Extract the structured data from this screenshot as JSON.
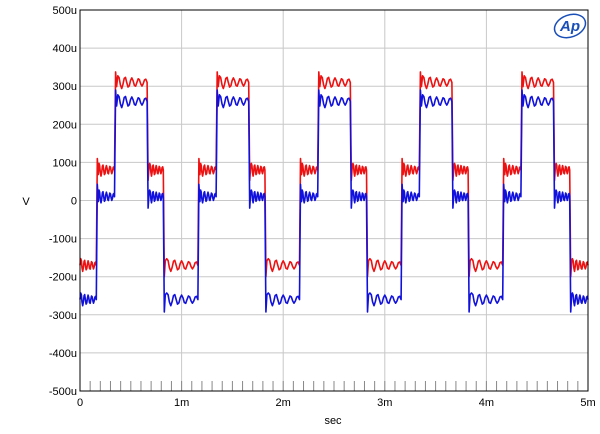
{
  "chart_data": {
    "type": "line",
    "title": "",
    "xlabel": "sec",
    "ylabel": "V",
    "xlim": [
      0,
      0.005
    ],
    "ylim": [
      -0.0005,
      0.0005
    ],
    "grid": true,
    "logo": "Ap",
    "x_ticks": [
      {
        "value": 0,
        "label": "0"
      },
      {
        "value": 0.001,
        "label": "1m"
      },
      {
        "value": 0.002,
        "label": "2m"
      },
      {
        "value": 0.003,
        "label": "3m"
      },
      {
        "value": 0.004,
        "label": "4m"
      },
      {
        "value": 0.005,
        "label": "5m"
      }
    ],
    "y_ticks": [
      {
        "value": 0.0005,
        "label": "500u"
      },
      {
        "value": 0.0004,
        "label": "400u"
      },
      {
        "value": 0.0003,
        "label": "300u"
      },
      {
        "value": 0.0002,
        "label": "200u"
      },
      {
        "value": 0.0001,
        "label": "100u"
      },
      {
        "value": 0,
        "label": "0"
      },
      {
        "value": -0.0001,
        "label": "-100u"
      },
      {
        "value": -0.0002,
        "label": "-200u"
      },
      {
        "value": -0.0003,
        "label": "-300u"
      },
      {
        "value": -0.0004,
        "label": "-400u"
      },
      {
        "value": -0.0005,
        "label": "-500u"
      }
    ],
    "series": [
      {
        "color": "#ee1111",
        "x": [
          0,
          0.00016,
          0.00018,
          0.00034,
          0.00036,
          0.00066,
          0.00068,
          0.00082,
          0.00084,
          0.00116,
          0.00118,
          0.00134,
          0.00136,
          0.00166,
          0.00168,
          0.00182,
          0.00184,
          0.00216,
          0.00218,
          0.00234,
          0.00236,
          0.00266,
          0.00268,
          0.00282,
          0.00284,
          0.00316,
          0.00318,
          0.00334,
          0.00336,
          0.00366,
          0.00368,
          0.00382,
          0.00384,
          0.00416,
          0.00418,
          0.00434,
          0.00436,
          0.00466,
          0.00468,
          0.00482,
          0.00484,
          0.005
        ],
        "y": [
          -0.00017,
          -0.00017,
          8e-05,
          8e-05,
          0.00031,
          0.00031,
          8e-05,
          8e-05,
          -0.00017,
          -0.00017,
          8e-05,
          8e-05,
          0.00031,
          0.00031,
          8e-05,
          8e-05,
          -0.00017,
          -0.00017,
          8e-05,
          8e-05,
          0.00031,
          0.00031,
          8e-05,
          8e-05,
          -0.00017,
          -0.00017,
          8e-05,
          8e-05,
          0.00031,
          0.00031,
          8e-05,
          8e-05,
          -0.00017,
          -0.00017,
          8e-05,
          8e-05,
          0.00031,
          0.00031,
          8e-05,
          8e-05,
          -0.00017,
          -0.00017
        ]
      },
      {
        "color": "#1111dd",
        "x": [
          0,
          0.00016,
          0.00018,
          0.00034,
          0.00036,
          0.00066,
          0.00068,
          0.00082,
          0.00084,
          0.00116,
          0.00118,
          0.00134,
          0.00136,
          0.00166,
          0.00168,
          0.00182,
          0.00184,
          0.00216,
          0.00218,
          0.00234,
          0.00236,
          0.00266,
          0.00268,
          0.00282,
          0.00284,
          0.00316,
          0.00318,
          0.00334,
          0.00336,
          0.00366,
          0.00368,
          0.00382,
          0.00384,
          0.00416,
          0.00418,
          0.00434,
          0.00436,
          0.00466,
          0.00468,
          0.00482,
          0.00484,
          0.005
        ],
        "y": [
          -0.00026,
          -0.00026,
          1e-05,
          1e-05,
          0.00026,
          0.00026,
          1e-05,
          1e-05,
          -0.00026,
          -0.00026,
          1e-05,
          1e-05,
          0.00026,
          0.00026,
          1e-05,
          1e-05,
          -0.00026,
          -0.00026,
          1e-05,
          1e-05,
          0.00026,
          0.00026,
          1e-05,
          1e-05,
          -0.00026,
          -0.00026,
          1e-05,
          1e-05,
          0.00026,
          0.00026,
          1e-05,
          1e-05,
          -0.00026,
          -0.00026,
          1e-05,
          1e-05,
          0.00026,
          0.00026,
          1e-05,
          1e-05,
          -0.00026,
          -0.00026
        ]
      }
    ]
  }
}
